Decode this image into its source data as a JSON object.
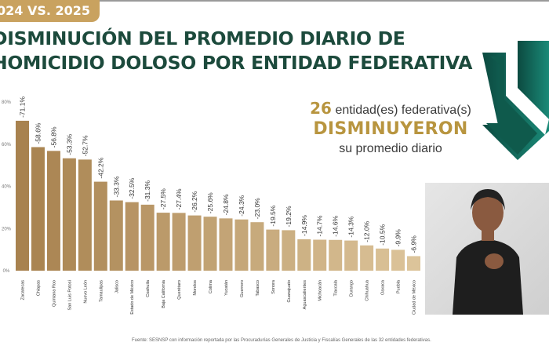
{
  "header": {
    "badge": "024 VS. 2025",
    "title_line1": "DISMINUCIÓN DEL PROMEDIO DIARIO DE",
    "title_line2": "HOMICIDIO DOLOSO POR ENTIDAD FEDERATIVA"
  },
  "callout": {
    "count": "26",
    "line1": "entidad(es) federativa(s)",
    "line2": "DISMINUYERON",
    "line3": "su promedio diario"
  },
  "colors": {
    "bar_dark": "#a8824f",
    "bar_light": "#dcc49a",
    "title": "#1c4a3c",
    "gold": "#b8953f",
    "arrow": "#0f5a4c"
  },
  "footer": {
    "source": "Fuente: SESNSP con información reportada por las Procuradurías Generales de Justicia y Fiscalías Generales de las 32 entidades federativas."
  },
  "chart_data": {
    "type": "bar",
    "title": "Disminución del promedio diario de homicidio doloso por entidad federativa",
    "xlabel": "",
    "ylabel": "",
    "ylim": [
      0,
      80
    ],
    "yticks": [
      "0%",
      "20%",
      "40%",
      "60%",
      "80%"
    ],
    "categories": [
      "Zacatecas",
      "Chiapas",
      "Quintana Roo",
      "San Luis Potosí",
      "Nuevo León",
      "Tamaulipas",
      "Jalisco",
      "Estado de México",
      "Coahuila",
      "Baja California",
      "Querétaro",
      "Morelos",
      "Colima",
      "Yucatán",
      "Guerrero",
      "Tabasco",
      "Sonora",
      "Guanajuato",
      "Aguascalientes",
      "Michoacán",
      "Tlaxcala",
      "Durango",
      "Chihuahua",
      "Oaxaca",
      "Puebla",
      "Ciudad de México"
    ],
    "values": [
      71.1,
      58.6,
      56.8,
      53.3,
      52.7,
      42.2,
      33.3,
      32.5,
      31.3,
      27.5,
      27.4,
      26.2,
      25.6,
      24.8,
      24.3,
      23.0,
      19.5,
      19.2,
      14.9,
      14.7,
      14.6,
      14.3,
      12.0,
      10.5,
      9.9,
      6.9
    ],
    "labels": [
      "-71.1%",
      "-58.6%",
      "-56.8%",
      "-53.3%",
      "-52.7%",
      "-42.2%",
      "-33.3%",
      "-32.5%",
      "-31.3%",
      "-27.5%",
      "-27.4%",
      "-26.2%",
      "-25.6%",
      "-24.8%",
      "-24.3%",
      "-23.0%",
      "-19.5%",
      "-19.2%",
      "-14.9%",
      "-14.7%",
      "-14.6%",
      "-14.3%",
      "-12.0%",
      "-10.5%",
      "-9.9%",
      "-6.9%"
    ],
    "grid": false
  }
}
